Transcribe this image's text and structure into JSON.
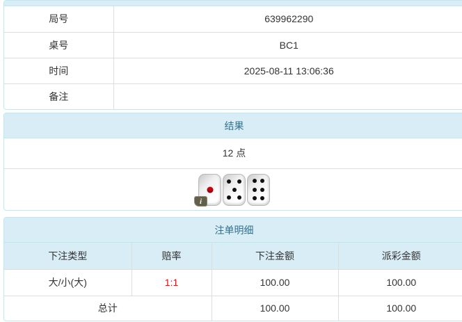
{
  "colors": {
    "panel_header_bg": "#d9edf7",
    "panel_header_text": "#31708f",
    "panel_border": "#bce8f1",
    "cell_border": "#dddddd",
    "text_color": "#333333",
    "odds_color": "#ff0000"
  },
  "info_table": {
    "rows": [
      {
        "label": "局号",
        "value": "639962290"
      },
      {
        "label": "桌号",
        "value": "BC1"
      },
      {
        "label": "时间",
        "value": "2025-08-11 13:06:36"
      },
      {
        "label": "备注",
        "value": ""
      }
    ]
  },
  "result_panel": {
    "title": "结果",
    "points": "12 点",
    "dice": [
      1,
      5,
      6
    ],
    "info_icon": "i"
  },
  "bets_panel": {
    "title": "注单明细",
    "columns": [
      "下注类型",
      "赔率",
      "下注金额",
      "派彩金额"
    ],
    "rows": [
      {
        "type": "大/小(大)",
        "odds": "1:1",
        "bet": "100.00",
        "payout": "100.00"
      }
    ],
    "total": {
      "label": "总计",
      "bet": "100.00",
      "payout": "100.00"
    }
  }
}
